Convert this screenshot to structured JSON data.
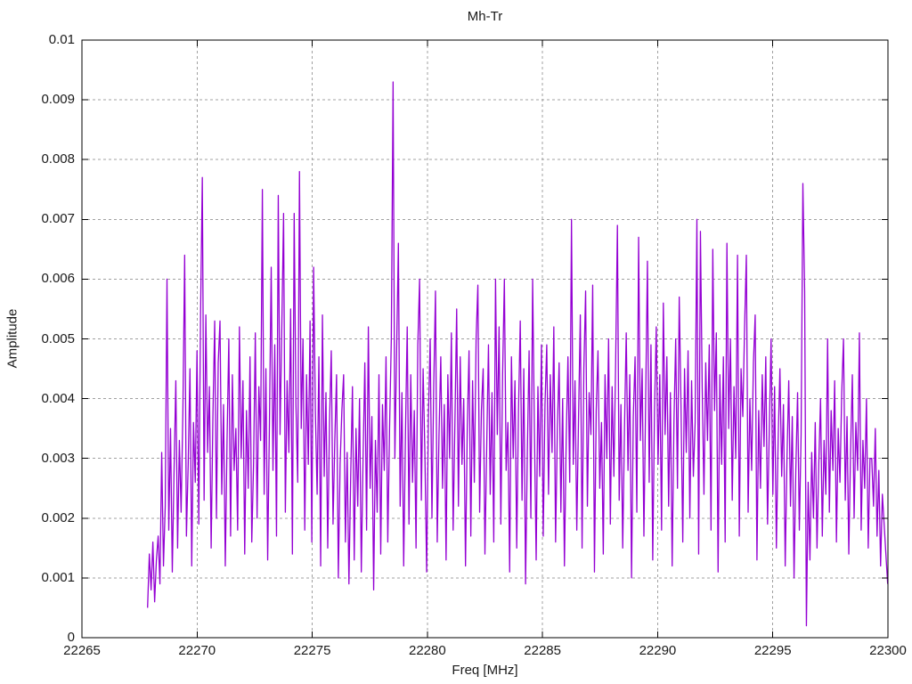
{
  "chart_data": {
    "type": "line",
    "title": "Mh-Tr",
    "xlabel": "Freq [MHz]",
    "ylabel": "Amplitude",
    "xlim": [
      22265,
      22300
    ],
    "ylim": [
      0,
      0.01
    ],
    "xticks": {
      "values": [
        22265,
        22270,
        22275,
        22280,
        22285,
        22290,
        22295,
        22300
      ],
      "labels": [
        "22265",
        "22270",
        "22275",
        "22280",
        "22285",
        "22290",
        "22295",
        "22300"
      ]
    },
    "yticks": {
      "values": [
        0,
        0.001,
        0.002,
        0.003,
        0.004,
        0.005,
        0.006,
        0.007,
        0.008,
        0.009,
        0.01
      ],
      "labels": [
        "0",
        "0.001",
        "0.002",
        "0.003",
        "0.004",
        "0.005",
        "0.006",
        "0.007",
        "0.008",
        "0.009",
        "0.01"
      ]
    },
    "grid": "dashed",
    "grid_color": "#a0a0a0",
    "line_color": "#9400d3",
    "border_color": "#000000",
    "background": "#ffffff",
    "legend": "none",
    "notable_peaks": [
      {
        "freq": 22268.7,
        "amp": 0.006
      },
      {
        "freq": 22269.5,
        "amp": 0.0064
      },
      {
        "freq": 22270.2,
        "amp": 0.0077
      },
      {
        "freq": 22272.9,
        "amp": 0.0075
      },
      {
        "freq": 22274.5,
        "amp": 0.0078
      },
      {
        "freq": 22278.6,
        "amp": 0.0093
      },
      {
        "freq": 22286.3,
        "amp": 0.007
      },
      {
        "freq": 22288.3,
        "amp": 0.0069
      },
      {
        "freq": 22291.7,
        "amp": 0.007
      },
      {
        "freq": 22293.0,
        "amp": 0.0066
      },
      {
        "freq": 22296.3,
        "amp": 0.0076
      }
    ],
    "series": [
      {
        "name": "Mh-Tr amplitude",
        "x_start": 22267.85,
        "x_step": 0.0767,
        "amp_unit": 0.0001,
        "values": [
          5,
          14,
          8,
          16,
          6,
          13,
          17,
          9,
          31,
          12,
          22,
          60,
          18,
          35,
          11,
          28,
          43,
          15,
          33,
          21,
          38,
          64,
          17,
          29,
          45,
          12,
          36,
          26,
          48,
          19,
          54,
          77,
          23,
          54,
          31,
          42,
          15,
          37,
          53,
          20,
          46,
          53,
          24,
          39,
          12,
          33,
          50,
          17,
          44,
          28,
          35,
          18,
          52,
          30,
          43,
          14,
          38,
          25,
          47,
          16,
          29,
          51,
          20,
          42,
          33,
          75,
          24,
          45,
          13,
          36,
          62,
          28,
          49,
          17,
          74,
          34,
          52,
          71,
          21,
          43,
          31,
          55,
          14,
          71,
          39,
          26,
          78,
          35,
          50,
          18,
          44,
          29,
          53,
          16,
          62,
          38,
          24,
          47,
          12,
          54,
          27,
          41,
          15,
          36,
          48,
          19,
          33,
          44,
          10,
          29,
          38,
          44,
          16,
          31,
          9,
          27,
          42,
          13,
          35,
          22,
          40,
          11,
          30,
          46,
          18,
          52,
          25,
          37,
          8,
          33,
          21,
          44,
          14,
          39,
          28,
          47,
          16,
          35,
          50,
          93,
          30,
          48,
          66,
          22,
          41,
          12,
          34,
          52,
          19,
          44,
          26,
          38,
          15,
          49,
          60,
          23,
          45,
          31,
          11,
          37,
          50,
          20,
          42,
          58,
          16,
          34,
          47,
          25,
          39,
          13,
          44,
          30,
          51,
          18,
          36,
          55,
          22,
          47,
          29,
          40,
          12,
          35,
          48,
          17,
          43,
          26,
          50,
          59,
          21,
          38,
          45,
          14,
          32,
          49,
          24,
          41,
          16,
          60,
          34,
          52,
          19,
          44,
          60,
          28,
          36,
          11,
          47,
          30,
          43,
          15,
          38,
          53,
          23,
          45,
          9,
          31,
          48,
          20,
          60,
          35,
          13,
          42,
          27,
          49,
          17,
          39,
          49,
          24,
          44,
          31,
          52,
          16,
          35,
          46,
          21,
          40,
          12,
          33,
          47,
          26,
          70,
          29,
          43,
          18,
          37,
          54,
          15,
          45,
          58,
          22,
          41,
          34,
          59,
          11,
          38,
          48,
          25,
          36,
          14,
          44,
          30,
          50,
          19,
          42,
          27,
          46,
          69,
          23,
          39,
          15,
          35,
          51,
          28,
          44,
          10,
          37,
          47,
          21,
          67,
          33,
          45,
          17,
          40,
          63,
          26,
          49,
          13,
          38,
          52,
          29,
          44,
          18,
          56,
          34,
          47,
          22,
          41,
          12,
          36,
          50,
          25,
          57,
          39,
          16,
          45,
          31,
          48,
          20,
          43,
          27,
          36,
          70,
          14,
          68,
          42,
          24,
          46,
          33,
          49,
          18,
          65,
          38,
          51,
          11,
          44,
          29,
          47,
          16,
          66,
          35,
          50,
          23,
          42,
          30,
          64,
          17,
          45,
          37,
          52,
          64,
          21,
          40,
          28,
          46,
          54,
          13,
          38,
          25,
          44,
          32,
          47,
          19,
          35,
          50,
          24,
          42,
          15,
          33,
          45,
          27,
          39,
          12,
          30,
          43,
          22,
          37,
          10,
          28,
          41,
          18,
          34,
          76,
          58,
          2,
          26,
          13,
          31,
          20,
          36,
          15,
          29,
          40,
          17,
          33,
          24,
          50,
          21,
          38,
          28,
          43,
          16,
          35,
          26,
          41,
          50,
          23,
          37,
          14,
          31,
          44,
          20,
          36,
          28,
          51,
          18,
          33,
          25,
          40,
          15,
          30,
          30,
          22,
          35,
          17,
          28,
          12,
          24,
          19,
          14,
          9
        ]
      }
    ]
  }
}
